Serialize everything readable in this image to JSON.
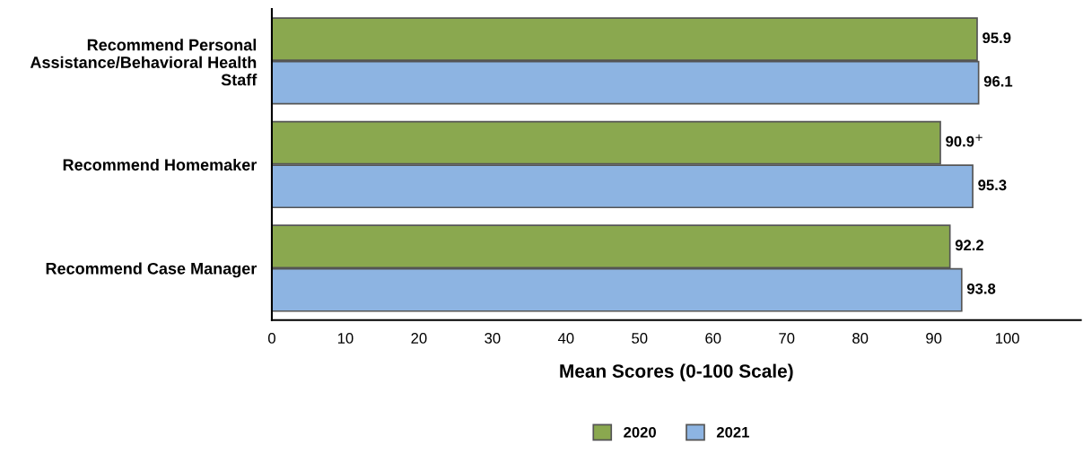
{
  "chart_data": {
    "type": "bar",
    "orientation": "horizontal",
    "categories": [
      "Recommend Personal Assistance/Behavioral Health Staff",
      "Recommend Homemaker",
      "Recommend Case Manager"
    ],
    "series": [
      {
        "name": "2020",
        "color": "#8aa84f",
        "values": [
          95.9,
          90.9,
          92.2
        ],
        "value_labels": [
          "95.9",
          "90.9$^{+}$",
          "92.2"
        ]
      },
      {
        "name": "2021",
        "color": "#8db4e2",
        "values": [
          96.1,
          95.3,
          93.8
        ],
        "value_labels": [
          "96.1",
          "95.3",
          "93.8"
        ]
      }
    ],
    "xlabel": "Mean Scores (0-100 Scale)",
    "xlim": [
      0,
      110
    ],
    "xticks": [
      0,
      10,
      20,
      30,
      40,
      50,
      60,
      70,
      80,
      90,
      100
    ],
    "grid": false,
    "legend": "bottom"
  }
}
